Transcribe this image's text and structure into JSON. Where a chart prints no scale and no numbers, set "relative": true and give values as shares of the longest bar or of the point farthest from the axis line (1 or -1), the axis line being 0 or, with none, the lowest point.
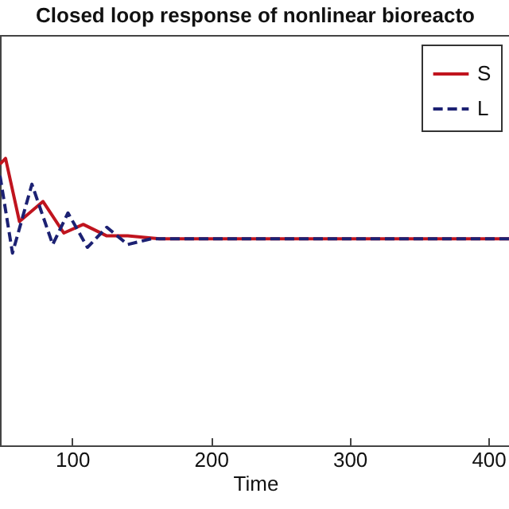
{
  "chart_data": {
    "type": "line",
    "title": "Closed loop response of nonlinear bioreacto",
    "xlabel": "Time",
    "relative": true,
    "xlim": [
      48,
      416
    ],
    "xticks": [
      100,
      200,
      300,
      400
    ],
    "legend": "top right",
    "series": [
      {
        "name": "S",
        "color": "#c0141e",
        "line_style": "solid",
        "x": [
          48,
          52,
          62,
          79,
          94,
          108,
          125,
          140,
          163,
          200,
          300,
          416
        ],
        "values": [
          0.98,
          1.0,
          0.78,
          0.85,
          0.74,
          0.77,
          0.73,
          0.73,
          0.72,
          0.72,
          0.72,
          0.72
        ]
      },
      {
        "name": "L",
        "color": "#1c2173",
        "line_style": "dashed",
        "x": [
          48,
          57,
          71,
          86,
          97,
          111,
          125,
          140,
          157,
          170,
          200,
          300,
          416
        ],
        "values": [
          0.94,
          0.67,
          0.91,
          0.7,
          0.81,
          0.69,
          0.76,
          0.7,
          0.72,
          0.72,
          0.72,
          0.72,
          0.72
        ]
      }
    ]
  }
}
